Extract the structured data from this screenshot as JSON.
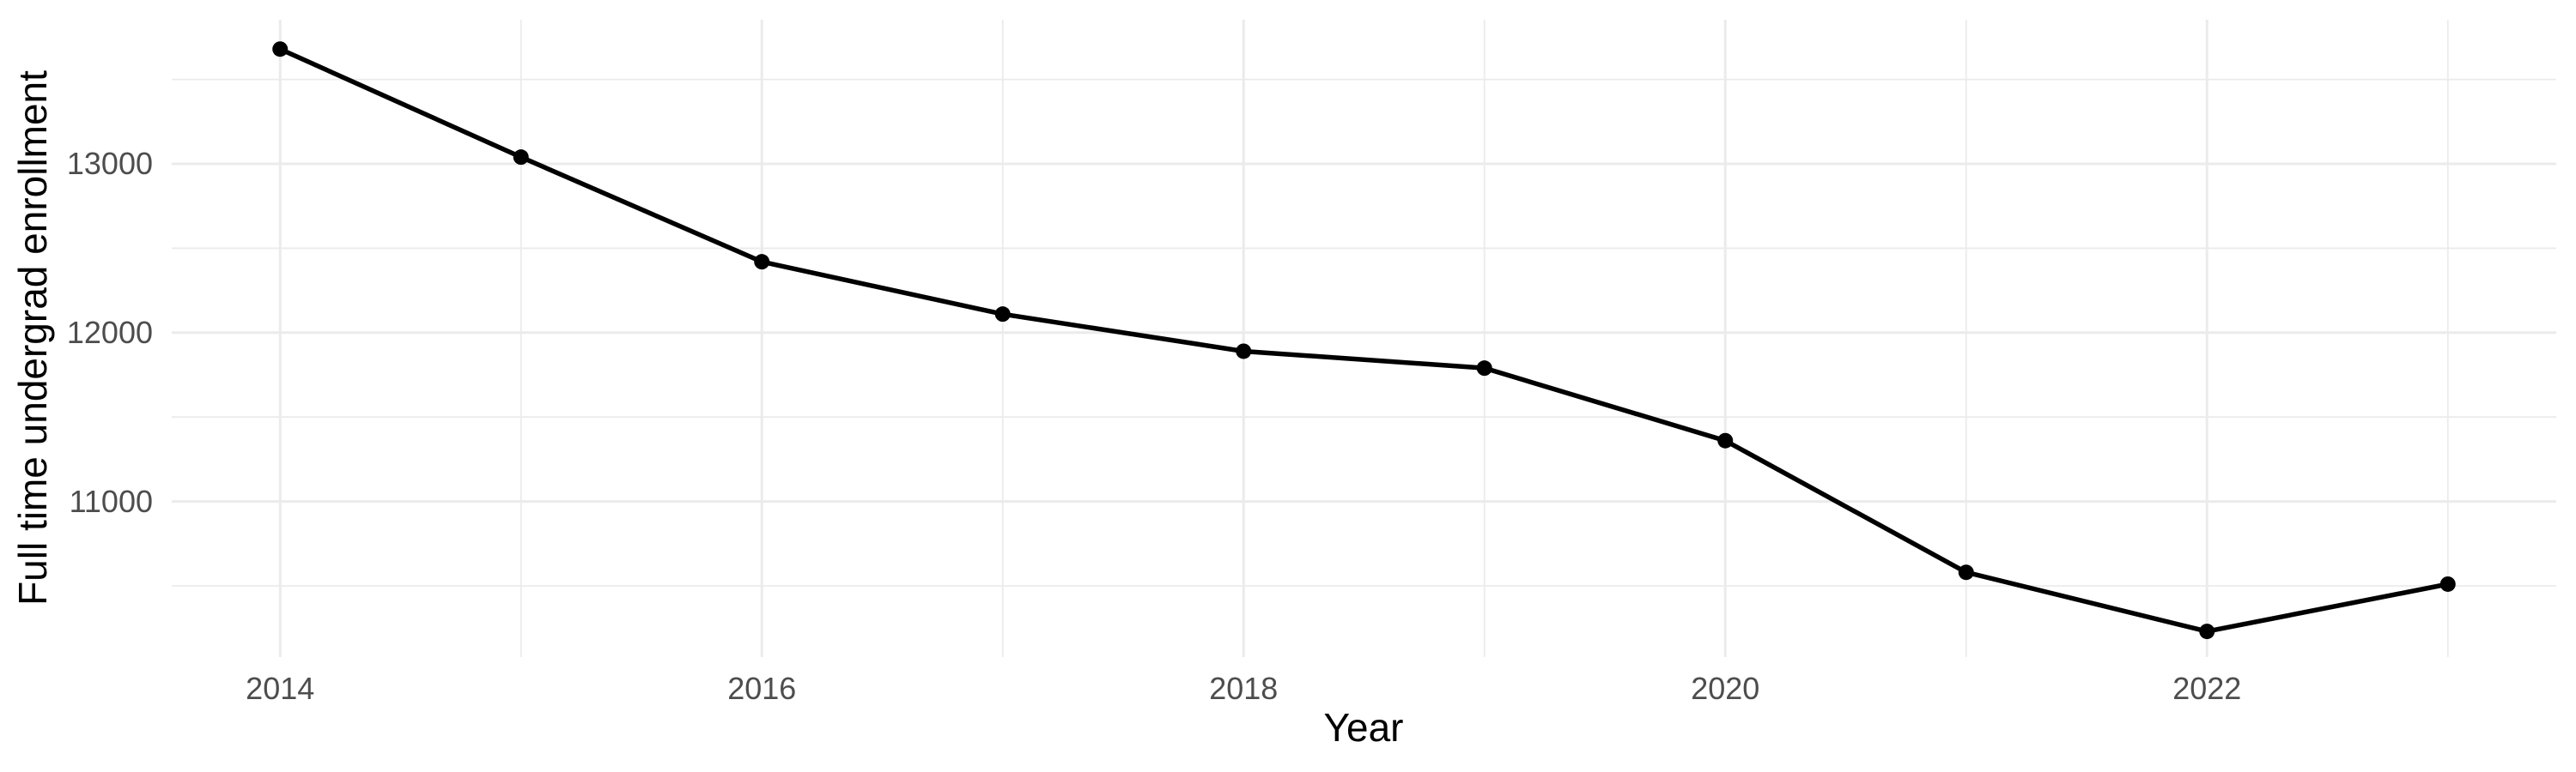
{
  "chart_data": {
    "type": "line",
    "title": "",
    "xlabel": "Year",
    "ylabel": "Full time undergrad enrollment",
    "x": [
      2014,
      2015,
      2016,
      2017,
      2018,
      2019,
      2020,
      2021,
      2022,
      2023
    ],
    "values": [
      13680,
      13040,
      12420,
      12110,
      11890,
      11790,
      11360,
      10580,
      10230,
      10510
    ],
    "x_ticks": [
      2014,
      2016,
      2018,
      2020,
      2022
    ],
    "x_tick_labels": [
      "2014",
      "2016",
      "2018",
      "2020",
      "2022"
    ],
    "x_minor_gridlines": [
      2015,
      2017,
      2019,
      2021,
      2023
    ],
    "y_ticks": [
      11000,
      12000,
      13000
    ],
    "y_tick_labels": [
      "11000",
      "12000",
      "13000"
    ],
    "y_minor_gridlines": [
      10500,
      11500,
      12500,
      13500
    ],
    "xlim": [
      2013.55,
      2023.45
    ],
    "ylim": [
      10078,
      13854
    ],
    "grid": true,
    "legend": "none",
    "marker": "filled-circle"
  },
  "style": {
    "background": "#ffffff",
    "grid_color": "#ebebeb",
    "line_color": "#000000",
    "point_color": "#000000",
    "tick_label_color": "#4d4d4d",
    "axis_title_color": "#000000"
  }
}
